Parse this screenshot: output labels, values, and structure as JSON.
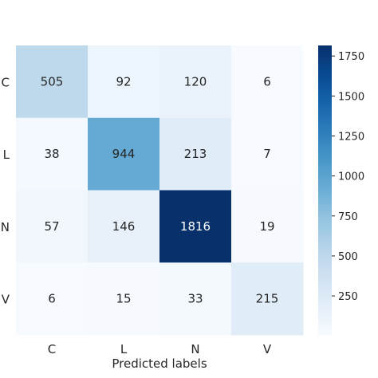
{
  "chart_data": {
    "type": "heatmap",
    "title": "",
    "xlabel": "Predicted labels",
    "ylabel": "",
    "x_categories": [
      "C",
      "L",
      "N",
      "V"
    ],
    "y_categories": [
      "C",
      "L",
      "N",
      "V"
    ],
    "values": [
      [
        505,
        92,
        120,
        6
      ],
      [
        38,
        944,
        213,
        7
      ],
      [
        57,
        146,
        1816,
        19
      ],
      [
        6,
        15,
        33,
        215
      ]
    ],
    "colormap": "Blues",
    "vmin": 6,
    "vmax": 1816,
    "colorbar": {
      "ticks": [
        250,
        500,
        750,
        1000,
        1250,
        1500,
        1750
      ]
    }
  }
}
